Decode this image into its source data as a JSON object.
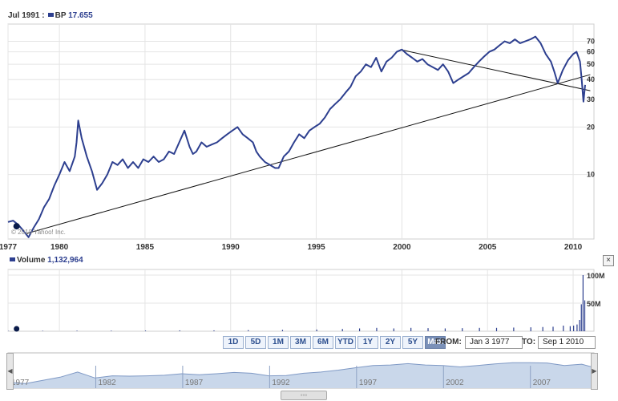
{
  "legend": {
    "date": "Jul 1991 :",
    "symbol": "BP",
    "value": "17.655",
    "series_color": "#2d3f8f"
  },
  "volume_legend": {
    "label": "Volume",
    "value": "1,132,964"
  },
  "copyright": "© 2010 Yahoo! Inc.",
  "close_symbol": "×",
  "range_buttons": [
    "1D",
    "5D",
    "1M",
    "3M",
    "6M",
    "YTD",
    "1Y",
    "2Y",
    "5Y",
    "Max"
  ],
  "active_range": "Max",
  "from": {
    "label": "FROM:",
    "value": "Jan 3 1977"
  },
  "to": {
    "label": "TO:",
    "value": "Sep 1 2010"
  },
  "nav_labels": [
    "1977",
    "1982",
    "1987",
    "1992",
    "1997",
    "2002",
    "2007"
  ],
  "scroll_symbol": "◦◦◦",
  "nav_arrows": {
    "left": "◀",
    "right": "▶"
  },
  "chart_data": [
    {
      "type": "line",
      "scale": "log",
      "series": [
        {
          "name": "BP",
          "color": "#2d3f8f",
          "x": [
            1977.0,
            1977.3,
            1977.6,
            1977.9,
            1978.2,
            1978.5,
            1978.8,
            1979.1,
            1979.4,
            1979.7,
            1980.0,
            1980.3,
            1980.6,
            1980.9,
            1981.0,
            1981.1,
            1981.3,
            1981.6,
            1981.9,
            1982.2,
            1982.5,
            1982.8,
            1983.1,
            1983.4,
            1983.7,
            1984.0,
            1984.3,
            1984.6,
            1984.9,
            1985.2,
            1985.5,
            1985.8,
            1986.1,
            1986.4,
            1986.7,
            1987.0,
            1987.3,
            1987.6,
            1987.8,
            1988.0,
            1988.3,
            1988.6,
            1988.9,
            1989.2,
            1989.5,
            1989.8,
            1990.1,
            1990.4,
            1990.7,
            1991.0,
            1991.3,
            1991.5,
            1991.7,
            1992.0,
            1992.3,
            1992.6,
            1992.8,
            1993.1,
            1993.4,
            1993.7,
            1994.0,
            1994.3,
            1994.6,
            1994.9,
            1995.2,
            1995.5,
            1995.8,
            1996.1,
            1996.4,
            1996.7,
            1997.0,
            1997.3,
            1997.6,
            1997.9,
            1998.2,
            1998.5,
            1998.8,
            1999.1,
            1999.4,
            1999.7,
            2000.0,
            2000.3,
            2000.6,
            2000.9,
            2001.2,
            2001.5,
            2001.8,
            2002.1,
            2002.4,
            2002.7,
            2003.0,
            2003.3,
            2003.6,
            2003.9,
            2004.2,
            2004.5,
            2004.8,
            2005.1,
            2005.4,
            2005.7,
            2006.0,
            2006.3,
            2006.6,
            2006.9,
            2007.2,
            2007.5,
            2007.8,
            2008.1,
            2008.4,
            2008.7,
            2008.9,
            2009.1,
            2009.4,
            2009.7,
            2010.0,
            2010.2,
            2010.4,
            2010.5,
            2010.6,
            2010.7
          ],
          "y": [
            5.0,
            5.1,
            4.8,
            4.4,
            4.0,
            4.6,
            5.2,
            6.2,
            7.0,
            8.5,
            10.0,
            12.0,
            10.5,
            13.0,
            16.0,
            22.0,
            17.0,
            13.0,
            10.5,
            8.0,
            8.8,
            10.0,
            12.0,
            11.5,
            12.5,
            11.0,
            12.0,
            11.0,
            12.5,
            12.0,
            13.0,
            12.0,
            12.5,
            14.0,
            13.5,
            16.0,
            19.0,
            15.0,
            13.5,
            14.0,
            16.0,
            15.0,
            15.5,
            16.0,
            17.0,
            18.0,
            19.0,
            20.0,
            18.0,
            17.0,
            16.0,
            14.0,
            13.0,
            12.0,
            11.5,
            11.0,
            11.0,
            13.0,
            14.0,
            16.0,
            18.0,
            17.0,
            19.0,
            20.0,
            21.0,
            23.0,
            26.0,
            28.0,
            30.0,
            33.0,
            36.0,
            42.0,
            45.0,
            50.0,
            48.0,
            55.0,
            45.0,
            52.0,
            55.0,
            60.0,
            62.0,
            58.0,
            55.0,
            52.0,
            54.0,
            50.0,
            48.0,
            46.0,
            50.0,
            45.0,
            38.0,
            40.0,
            42.0,
            44.0,
            48.0,
            52.0,
            56.0,
            60.0,
            62.0,
            66.0,
            70.0,
            68.0,
            72.0,
            68.0,
            70.0,
            72.0,
            75.0,
            68.0,
            58.0,
            52.0,
            45.0,
            38.0,
            46.0,
            53.0,
            58.0,
            60.0,
            52.0,
            40.0,
            29.0,
            37.0
          ],
          "trendlines": [
            {
              "x": [
                1978.0,
                2011.0
              ],
              "y": [
                4.2,
                43.0
              ]
            },
            {
              "x": [
                1999.9,
                2011.0
              ],
              "y": [
                62.0,
                34.0
              ]
            }
          ]
        }
      ],
      "x_ticks": [
        "1977",
        "1980",
        "1985",
        "1990",
        "1995",
        "2000",
        "2005",
        "2010"
      ],
      "y_ticks": [
        "10",
        "20",
        "30",
        "40",
        "50",
        "60",
        "70"
      ],
      "y_tick_values": [
        10,
        20,
        30,
        40,
        50,
        60,
        70
      ],
      "x_tick_values": [
        1977,
        1980,
        1985,
        1990,
        1995,
        2000,
        2005,
        2010
      ],
      "xlim": [
        1977,
        2010.7
      ],
      "ylim": [
        3.9,
        90
      ],
      "grid": true,
      "marker": {
        "x": 1977.5,
        "y": 4.7
      }
    },
    {
      "type": "bar",
      "series": [
        {
          "name": "Volume",
          "color": "#2d3f8f",
          "x": [
            1977.0,
            1979.0,
            1981.0,
            1983.0,
            1985.0,
            1987.0,
            1989.0,
            1991.0,
            1993.0,
            1995.0,
            1996.5,
            1997.5,
            1998.5,
            1999.5,
            2000.5,
            2001.5,
            2002.5,
            2003.5,
            2004.5,
            2005.5,
            2006.5,
            2007.5,
            2008.2,
            2008.8,
            2009.4,
            2009.8,
            2010.0,
            2010.2,
            2010.35,
            2010.45,
            2010.55,
            2010.65
          ],
          "y": [
            0.5,
            0.8,
            1.0,
            1.0,
            1.2,
            1.5,
            1.5,
            2.0,
            2.5,
            3.0,
            4.0,
            5.0,
            6.0,
            5.0,
            6.0,
            5.5,
            5.0,
            5.5,
            6.0,
            6.0,
            6.5,
            7.0,
            7.5,
            8.0,
            10.0,
            9.0,
            10.0,
            12.0,
            20.0,
            48.0,
            100.0,
            55.0
          ]
        }
      ],
      "y_ticks": [
        "50M",
        "100M"
      ],
      "y_tick_values": [
        50,
        100
      ],
      "ylim": [
        0,
        110
      ],
      "xlim": [
        1977,
        2010.7
      ],
      "grid": true
    },
    {
      "type": "area",
      "series": [
        {
          "name": "BP",
          "color": "#7f99c5",
          "fill": "#c9d7ea",
          "x": [
            1977.0,
            1978.0,
            1979.0,
            1980.0,
            1981.0,
            1982.0,
            1983.0,
            1984.0,
            1985.0,
            1986.0,
            1987.0,
            1988.0,
            1989.0,
            1990.0,
            1991.0,
            1992.0,
            1993.0,
            1994.0,
            1995.0,
            1996.0,
            1997.0,
            1998.0,
            1999.0,
            2000.0,
            2001.0,
            2002.0,
            2003.0,
            2004.0,
            2005.0,
            2006.0,
            2007.0,
            2008.0,
            2009.0,
            2010.0,
            2010.7
          ],
          "y": [
            5.0,
            4.2,
            6.5,
            10.0,
            20.0,
            9.0,
            12.0,
            11.5,
            12.0,
            13.0,
            16.0,
            14.0,
            16.0,
            19.0,
            17.0,
            12.0,
            12.5,
            17.0,
            20.0,
            26.0,
            36.0,
            48.0,
            52.0,
            62.0,
            52.0,
            48.0,
            40.0,
            48.0,
            60.0,
            70.0,
            70.0,
            68.0,
            48.0,
            58.0,
            37.0
          ]
        }
      ],
      "xlim": [
        1977,
        2010.7
      ]
    }
  ]
}
